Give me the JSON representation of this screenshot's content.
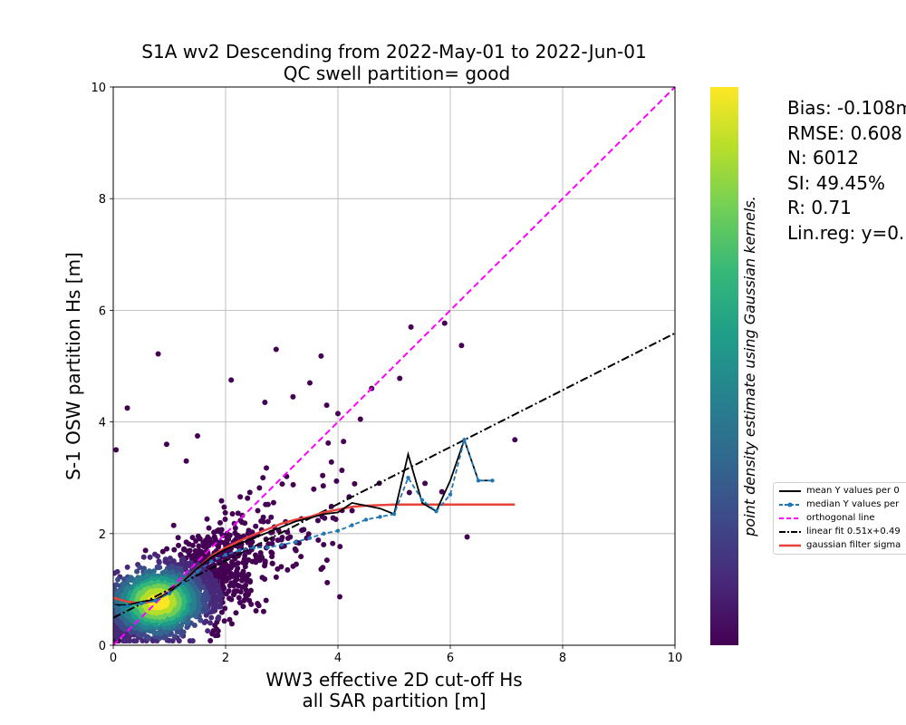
{
  "chart_data": {
    "type": "scatter",
    "title": "S1A wv2 Descending from 2022-May-01 to 2022-Jun-01",
    "subtitle": "QC swell partition= good",
    "xlabel_line1": "WW3 effective 2D cut-off Hs",
    "xlabel_line2": "all SAR partition [m]",
    "ylabel": "S-1 OSW partition Hs [m]",
    "xlim": [
      0,
      10
    ],
    "ylim": [
      0,
      10
    ],
    "x_ticks": [
      "0",
      "2",
      "4",
      "6",
      "8",
      "10"
    ],
    "y_ticks": [
      "0",
      "2",
      "4",
      "6",
      "8",
      "10"
    ],
    "grid": true,
    "colorbar_label": "point density estimate using Gaussian kernels.",
    "colormap": [
      "#440154",
      "#482878",
      "#3e4989",
      "#31688e",
      "#26828e",
      "#1f9e89",
      "#35b779",
      "#6ece58",
      "#b5de2b",
      "#fde725"
    ],
    "stats": [
      "Bias: -0.108m",
      "RMSE: 0.608",
      "N: 6012",
      "SI: 49.45%",
      "R: 0.71",
      "Lin.reg: y=0."
    ],
    "legend": [
      {
        "label": "mean Y values per 0",
        "color": "#000000",
        "style": "solid"
      },
      {
        "label": "median Y values per",
        "color": "#1f77b4",
        "style": "dashed-marker"
      },
      {
        "label": "orthogonal line",
        "color": "#ff00ff",
        "style": "dashed"
      },
      {
        "label": "linear fit 0.51x+0.49",
        "color": "#000000",
        "style": "dashdot"
      },
      {
        "label": "gaussian filter sigma",
        "color": "#e8413a",
        "style": "solid"
      }
    ],
    "linear_fit": {
      "slope": 0.51,
      "intercept": 0.49
    },
    "point_count": 6012,
    "mean_curve": {
      "x": [
        0.0,
        0.25,
        0.5,
        0.75,
        1.0,
        1.25,
        1.5,
        1.75,
        2.0,
        2.25,
        2.5,
        2.75,
        3.0,
        3.25,
        3.5,
        3.75,
        4.0,
        4.25,
        4.5,
        4.75,
        5.0,
        5.25,
        5.5,
        5.75,
        6.0,
        6.25,
        6.5,
        6.75
      ],
      "y": [
        0.72,
        0.72,
        0.78,
        0.82,
        0.95,
        1.15,
        1.38,
        1.58,
        1.72,
        1.82,
        1.92,
        2.02,
        2.12,
        2.22,
        2.28,
        2.35,
        2.38,
        2.55,
        2.5,
        2.45,
        2.35,
        3.42,
        2.55,
        2.4,
        2.95,
        3.68,
        2.95,
        2.95
      ]
    },
    "median_curve": {
      "x": [
        0.0,
        0.25,
        0.5,
        0.75,
        1.0,
        1.25,
        1.5,
        1.75,
        2.0,
        2.25,
        2.5,
        2.75,
        3.0,
        3.25,
        3.5,
        3.75,
        4.0,
        4.25,
        4.5,
        4.75,
        5.0,
        5.25,
        5.5,
        5.75,
        6.0,
        6.25,
        6.5,
        6.75
      ],
      "y": [
        0.7,
        0.7,
        0.75,
        0.8,
        0.93,
        1.12,
        1.32,
        1.5,
        1.62,
        1.7,
        1.75,
        1.75,
        1.8,
        1.85,
        1.92,
        2.0,
        2.05,
        2.15,
        2.25,
        2.3,
        2.35,
        3.0,
        2.6,
        2.4,
        2.7,
        3.68,
        2.95,
        2.95
      ]
    },
    "gaussian_curve": {
      "x": [
        0.0,
        0.25,
        0.5,
        0.75,
        1.0,
        1.25,
        1.5,
        1.75,
        2.0,
        2.25,
        2.5,
        2.75,
        3.0,
        3.25,
        3.5,
        3.75,
        4.0,
        4.25,
        4.5,
        5.0,
        5.5,
        6.0,
        6.5,
        7.15
      ],
      "y": [
        0.85,
        0.78,
        0.75,
        0.8,
        0.95,
        1.15,
        1.38,
        1.6,
        1.75,
        1.87,
        1.98,
        2.08,
        2.18,
        2.25,
        2.3,
        2.38,
        2.43,
        2.48,
        2.5,
        2.52,
        2.52,
        2.52,
        2.52,
        2.52
      ]
    },
    "outliers": {
      "x": [
        0.8,
        2.9,
        3.7,
        4.6,
        5.3,
        5.9,
        6.2,
        6.3,
        7.15,
        3.8,
        4.4,
        2.1,
        0.25,
        1.5,
        2.7,
        3.2,
        4.0,
        5.1,
        0.05,
        0.95,
        1.3,
        3.5,
        4.1,
        5.55,
        5.85
      ],
      "y": [
        5.22,
        5.3,
        5.18,
        4.6,
        5.7,
        5.77,
        5.37,
        1.94,
        3.68,
        4.3,
        4.05,
        4.75,
        4.25,
        3.75,
        4.35,
        4.45,
        4.15,
        4.78,
        3.5,
        3.6,
        3.3,
        4.7,
        3.65,
        2.9,
        2.75
      ]
    }
  }
}
